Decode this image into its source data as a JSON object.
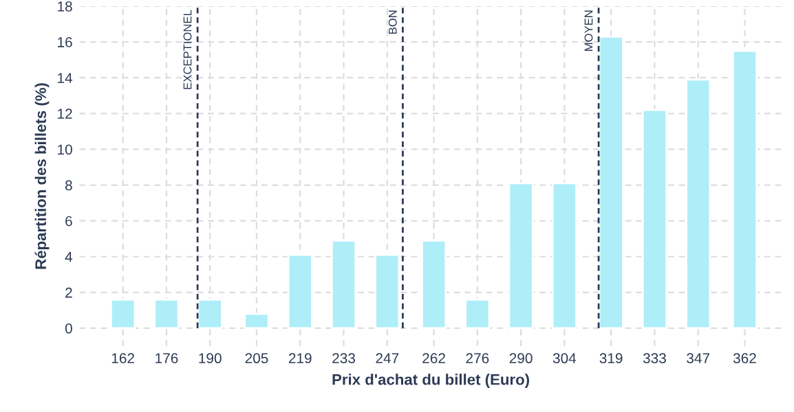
{
  "chart_data": {
    "type": "bar",
    "xlabel": "Prix d'achat du billet (Euro)",
    "ylabel": "Répartition des billets (%)",
    "x": [
      162,
      176,
      190,
      205,
      219,
      233,
      247,
      262,
      276,
      290,
      304,
      319,
      333,
      347,
      362
    ],
    "values": [
      1.6,
      1.6,
      1.6,
      0.8,
      4.1,
      4.9,
      4.1,
      4.9,
      1.6,
      8.1,
      8.1,
      16.3,
      12.2,
      13.9,
      15.5
    ],
    "color": "#aeeef8",
    "xlim": [
      148,
      374
    ],
    "xticks": [
      162,
      176,
      190,
      205,
      219,
      233,
      247,
      262,
      276,
      290,
      304,
      319,
      333,
      347,
      362
    ],
    "ylim": [
      -1,
      18
    ],
    "yticks": [
      0,
      2,
      4,
      6,
      8,
      10,
      12,
      14,
      16,
      18
    ],
    "ref_lines": [
      {
        "axis": "x",
        "value": 186,
        "label": "EXCEPTIONEL",
        "color": "#2d3a55",
        "line_style": "dashed"
      },
      {
        "axis": "x",
        "value": 252,
        "label": "BON",
        "color": "#2d3a55",
        "line_style": "dashed"
      },
      {
        "axis": "x",
        "value": 315,
        "label": "MOYEN",
        "color": "#2d3a55",
        "line_style": "dashed"
      }
    ],
    "grid": true
  }
}
